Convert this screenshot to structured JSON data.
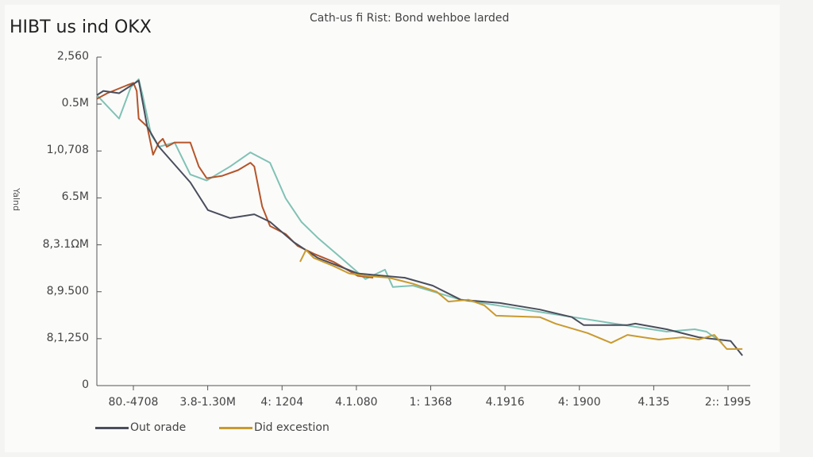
{
  "header": {
    "app_title": "HIBT us ind OKX"
  },
  "chart_data": {
    "type": "line",
    "title": "Cath-us fi Rist: Bond wehboe larded",
    "xlabel": "",
    "ylabel": "Yalnd",
    "xlim": [
      0,
      100
    ],
    "ylim": [
      0,
      7
    ],
    "yticks": [
      "0",
      "8,1,250",
      "8,9.500",
      "8,3.1ΩM",
      "6.5M",
      "1,0,708",
      "0.5M",
      "2,560"
    ],
    "xticks": [
      "80.-4708",
      "3.8-1.30M",
      "4: 1204",
      "4.1.080",
      "1: 1368",
      "4.1916",
      "4: 1900",
      "4.135",
      "2:: 1995"
    ],
    "legend_position": "bottom-left",
    "grid": false,
    "series": [
      {
        "name": "Out orade",
        "color": "#4a4e5c",
        "legend": true,
        "x": [
          0,
          1.0,
          3.4,
          6.4,
          7.7,
          9.5,
          14.3,
          17.0,
          20.4,
          24.1,
          26.5,
          30.1,
          33.8,
          39.9,
          47.1,
          51.4,
          55.7,
          61.7,
          67.8,
          72.7,
          74.5,
          81.2,
          82.4,
          87.2,
          92.1,
          97.0,
          98.8
        ],
        "y": [
          6.19,
          6.28,
          6.23,
          6.5,
          5.52,
          5.09,
          4.33,
          3.74,
          3.57,
          3.65,
          3.49,
          3.06,
          2.72,
          2.39,
          2.3,
          2.13,
          1.83,
          1.76,
          1.62,
          1.46,
          1.29,
          1.29,
          1.32,
          1.2,
          1.03,
          0.95,
          0.64
        ]
      },
      {
        "name": "Did excestion",
        "color": "#c99a2e",
        "legend": true,
        "x": [
          31.1,
          32.0,
          33.2,
          36.2,
          38.6,
          41.1,
          44.7,
          48.4,
          52.0,
          53.8,
          56.9,
          59.3,
          61.1,
          67.8,
          70.2,
          75.1,
          78.7,
          81.2,
          83.6,
          86.0,
          89.7,
          92.1,
          94.5,
          96.4,
          98.8
        ],
        "y": [
          2.64,
          2.89,
          2.72,
          2.55,
          2.39,
          2.34,
          2.3,
          2.17,
          2.0,
          1.79,
          1.83,
          1.71,
          1.49,
          1.46,
          1.32,
          1.12,
          0.91,
          1.08,
          1.03,
          0.98,
          1.03,
          0.98,
          1.08,
          0.78,
          0.78
        ]
      },
      {
        "name": "",
        "color": "#7fc2b4",
        "legend": false,
        "x": [
          0,
          3.4,
          5.2,
          6.4,
          7.0,
          8.3,
          9.5,
          11.9,
          14.3,
          16.8,
          20.4,
          23.5,
          26.5,
          28.9,
          31.3,
          33.8,
          37.4,
          41.1,
          44.1,
          45.3,
          48.4,
          55.7,
          87.2,
          91.5,
          93.3,
          95.7
        ],
        "y": [
          6.19,
          5.69,
          6.36,
          6.53,
          6.19,
          5.35,
          5.09,
          5.18,
          4.5,
          4.37,
          4.67,
          4.97,
          4.75,
          3.99,
          3.49,
          3.15,
          2.72,
          2.27,
          2.47,
          2.1,
          2.13,
          1.83,
          1.15,
          1.2,
          1.15,
          0.91
        ]
      },
      {
        "name": "",
        "color": "#b5552a",
        "legend": false,
        "x": [
          0,
          1.6,
          4.6,
          5.6,
          6.1,
          6.4,
          7.7,
          8.6,
          9.5,
          10.1,
          10.7,
          11.9,
          13.4,
          14.3,
          15.6,
          16.8,
          19.2,
          21.6,
          23.5,
          24.1,
          25.3,
          26.5,
          28.9,
          30.7,
          33.2,
          36.2,
          39.9,
          42.3
        ],
        "y": [
          6.11,
          6.23,
          6.4,
          6.45,
          6.28,
          5.69,
          5.52,
          4.92,
          5.18,
          5.26,
          5.09,
          5.18,
          5.18,
          5.18,
          4.67,
          4.42,
          4.47,
          4.59,
          4.75,
          4.67,
          3.82,
          3.4,
          3.23,
          2.98,
          2.81,
          2.64,
          2.34,
          2.3
        ]
      }
    ]
  }
}
